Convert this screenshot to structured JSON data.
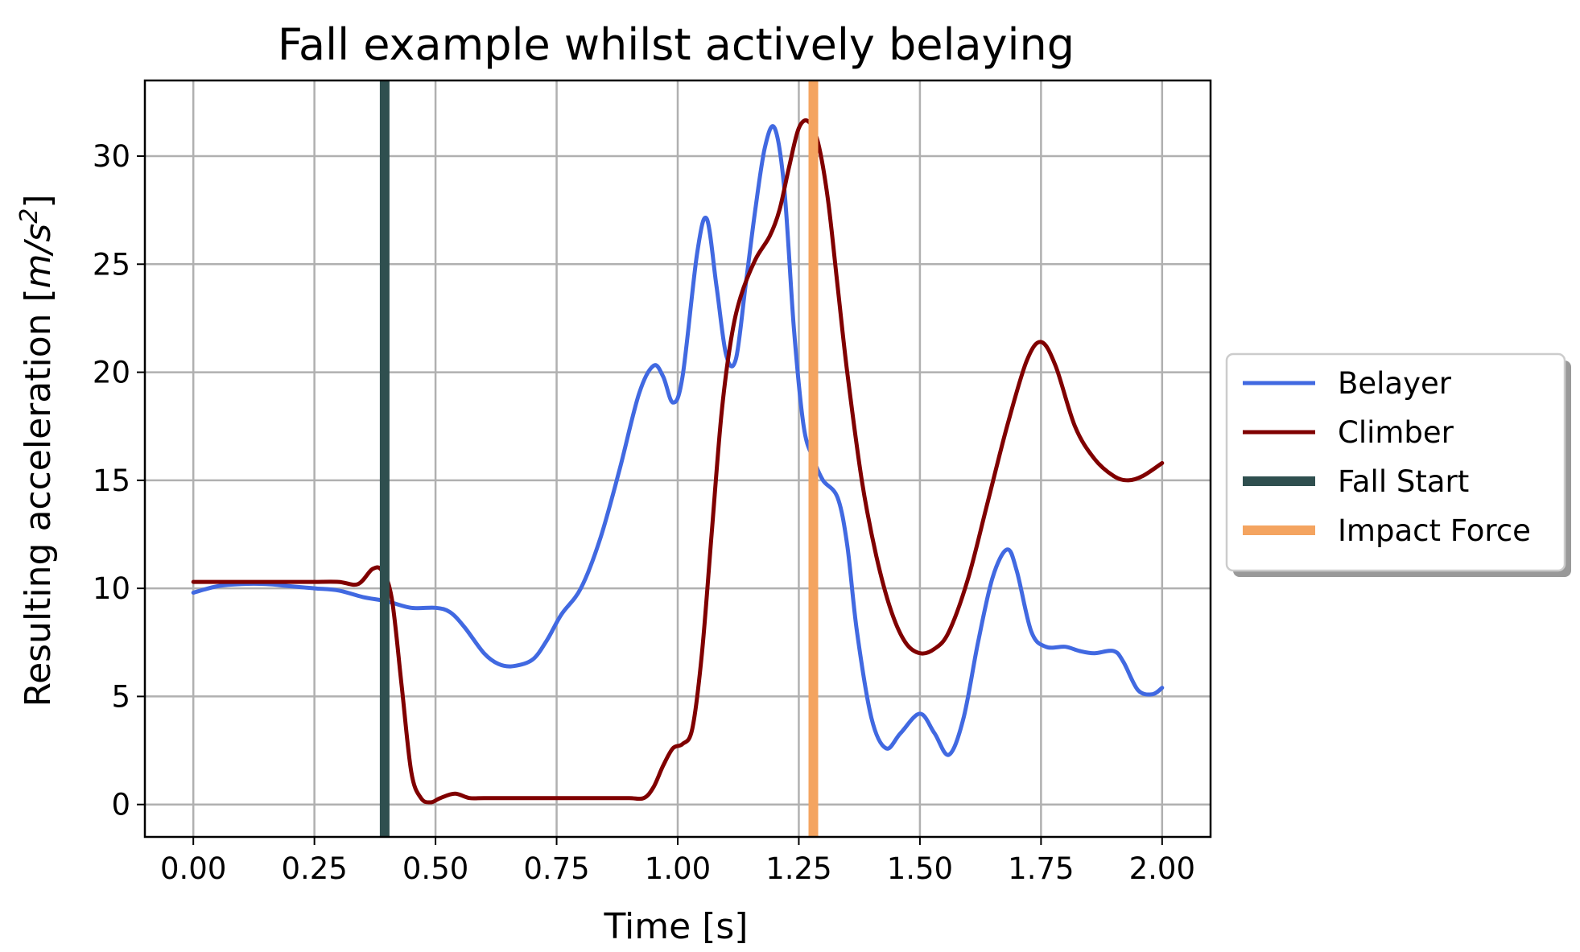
{
  "chart_data": {
    "type": "line",
    "title": "Fall example whilst actively belaying",
    "xlabel": "Time [s]",
    "ylabel_prefix": "Resulting acceleration [",
    "ylabel_unit_m": "m",
    "ylabel_unit_s": "/s",
    "ylabel_unit_exp": "2",
    "ylabel_suffix": "]",
    "xlim": [
      -0.1,
      2.1
    ],
    "ylim": [
      -1.5,
      33.5
    ],
    "xticks": [
      "0.00",
      "0.25",
      "0.50",
      "0.75",
      "1.00",
      "1.25",
      "1.50",
      "1.75",
      "2.00"
    ],
    "xtick_values": [
      0,
      0.25,
      0.5,
      0.75,
      1.0,
      1.25,
      1.5,
      1.75,
      2.0
    ],
    "yticks": [
      "0",
      "5",
      "10",
      "15",
      "20",
      "25",
      "30"
    ],
    "ytick_values": [
      0,
      5,
      10,
      15,
      20,
      25,
      30
    ],
    "grid": true,
    "legend_position": "right-outside",
    "series": [
      {
        "name": "Belayer",
        "color": "#4169e1",
        "x": [
          0.0,
          0.05,
          0.1,
          0.15,
          0.2,
          0.25,
          0.3,
          0.35,
          0.4,
          0.45,
          0.5,
          0.53,
          0.56,
          0.6,
          0.63,
          0.66,
          0.7,
          0.73,
          0.76,
          0.8,
          0.84,
          0.88,
          0.92,
          0.95,
          0.97,
          0.99,
          1.01,
          1.04,
          1.06,
          1.08,
          1.1,
          1.12,
          1.14,
          1.16,
          1.18,
          1.2,
          1.22,
          1.24,
          1.26,
          1.28,
          1.3,
          1.33,
          1.35,
          1.37,
          1.4,
          1.43,
          1.46,
          1.5,
          1.53,
          1.56,
          1.59,
          1.62,
          1.65,
          1.68,
          1.7,
          1.73,
          1.76,
          1.8,
          1.83,
          1.86,
          1.9,
          1.92,
          1.95,
          1.98,
          2.0
        ],
        "y": [
          9.8,
          10.1,
          10.2,
          10.2,
          10.1,
          10.0,
          9.9,
          9.6,
          9.4,
          9.1,
          9.1,
          8.9,
          8.2,
          7.0,
          6.5,
          6.4,
          6.7,
          7.6,
          8.8,
          10.0,
          12.3,
          15.5,
          19.0,
          20.3,
          19.8,
          18.6,
          19.8,
          25.5,
          27.1,
          24.0,
          20.8,
          20.6,
          24.0,
          27.5,
          30.4,
          31.3,
          28.5,
          22.0,
          17.5,
          16.0,
          15.0,
          14.2,
          12.0,
          8.0,
          4.0,
          2.6,
          3.3,
          4.2,
          3.3,
          2.3,
          4.0,
          7.5,
          10.5,
          11.8,
          10.8,
          8.0,
          7.3,
          7.3,
          7.1,
          7.0,
          7.1,
          6.6,
          5.3,
          5.1,
          5.4
        ]
      },
      {
        "name": "Climber",
        "color": "#800000",
        "x": [
          0.0,
          0.05,
          0.1,
          0.15,
          0.2,
          0.25,
          0.3,
          0.34,
          0.37,
          0.39,
          0.41,
          0.43,
          0.45,
          0.47,
          0.49,
          0.51,
          0.54,
          0.57,
          0.6,
          0.65,
          0.7,
          0.75,
          0.8,
          0.85,
          0.9,
          0.93,
          0.95,
          0.97,
          0.99,
          1.01,
          1.03,
          1.05,
          1.07,
          1.09,
          1.11,
          1.13,
          1.16,
          1.19,
          1.21,
          1.23,
          1.25,
          1.27,
          1.29,
          1.31,
          1.33,
          1.35,
          1.38,
          1.41,
          1.44,
          1.47,
          1.5,
          1.53,
          1.56,
          1.6,
          1.64,
          1.68,
          1.72,
          1.75,
          1.78,
          1.82,
          1.86,
          1.9,
          1.93,
          1.96,
          2.0
        ],
        "y": [
          10.3,
          10.3,
          10.3,
          10.3,
          10.3,
          10.3,
          10.3,
          10.2,
          10.9,
          10.8,
          9.5,
          5.5,
          1.5,
          0.3,
          0.1,
          0.3,
          0.5,
          0.3,
          0.3,
          0.3,
          0.3,
          0.3,
          0.3,
          0.3,
          0.3,
          0.3,
          0.8,
          1.8,
          2.6,
          2.8,
          3.5,
          7.0,
          12.5,
          18.0,
          21.5,
          23.5,
          25.2,
          26.3,
          27.5,
          29.5,
          31.3,
          31.6,
          30.6,
          28.0,
          24.0,
          20.0,
          15.0,
          11.5,
          9.0,
          7.5,
          7.0,
          7.2,
          8.0,
          10.5,
          14.0,
          17.5,
          20.5,
          21.4,
          20.3,
          17.5,
          16.0,
          15.2,
          15.0,
          15.2,
          15.8
        ]
      }
    ],
    "vlines": [
      {
        "name": "Fall Start",
        "x": 0.395,
        "color": "#2f4f4f"
      },
      {
        "name": "Impact Force",
        "x": 1.28,
        "color": "#f4a460"
      }
    ],
    "legend": [
      "Belayer",
      "Climber",
      "Fall Start",
      "Impact Force"
    ]
  }
}
